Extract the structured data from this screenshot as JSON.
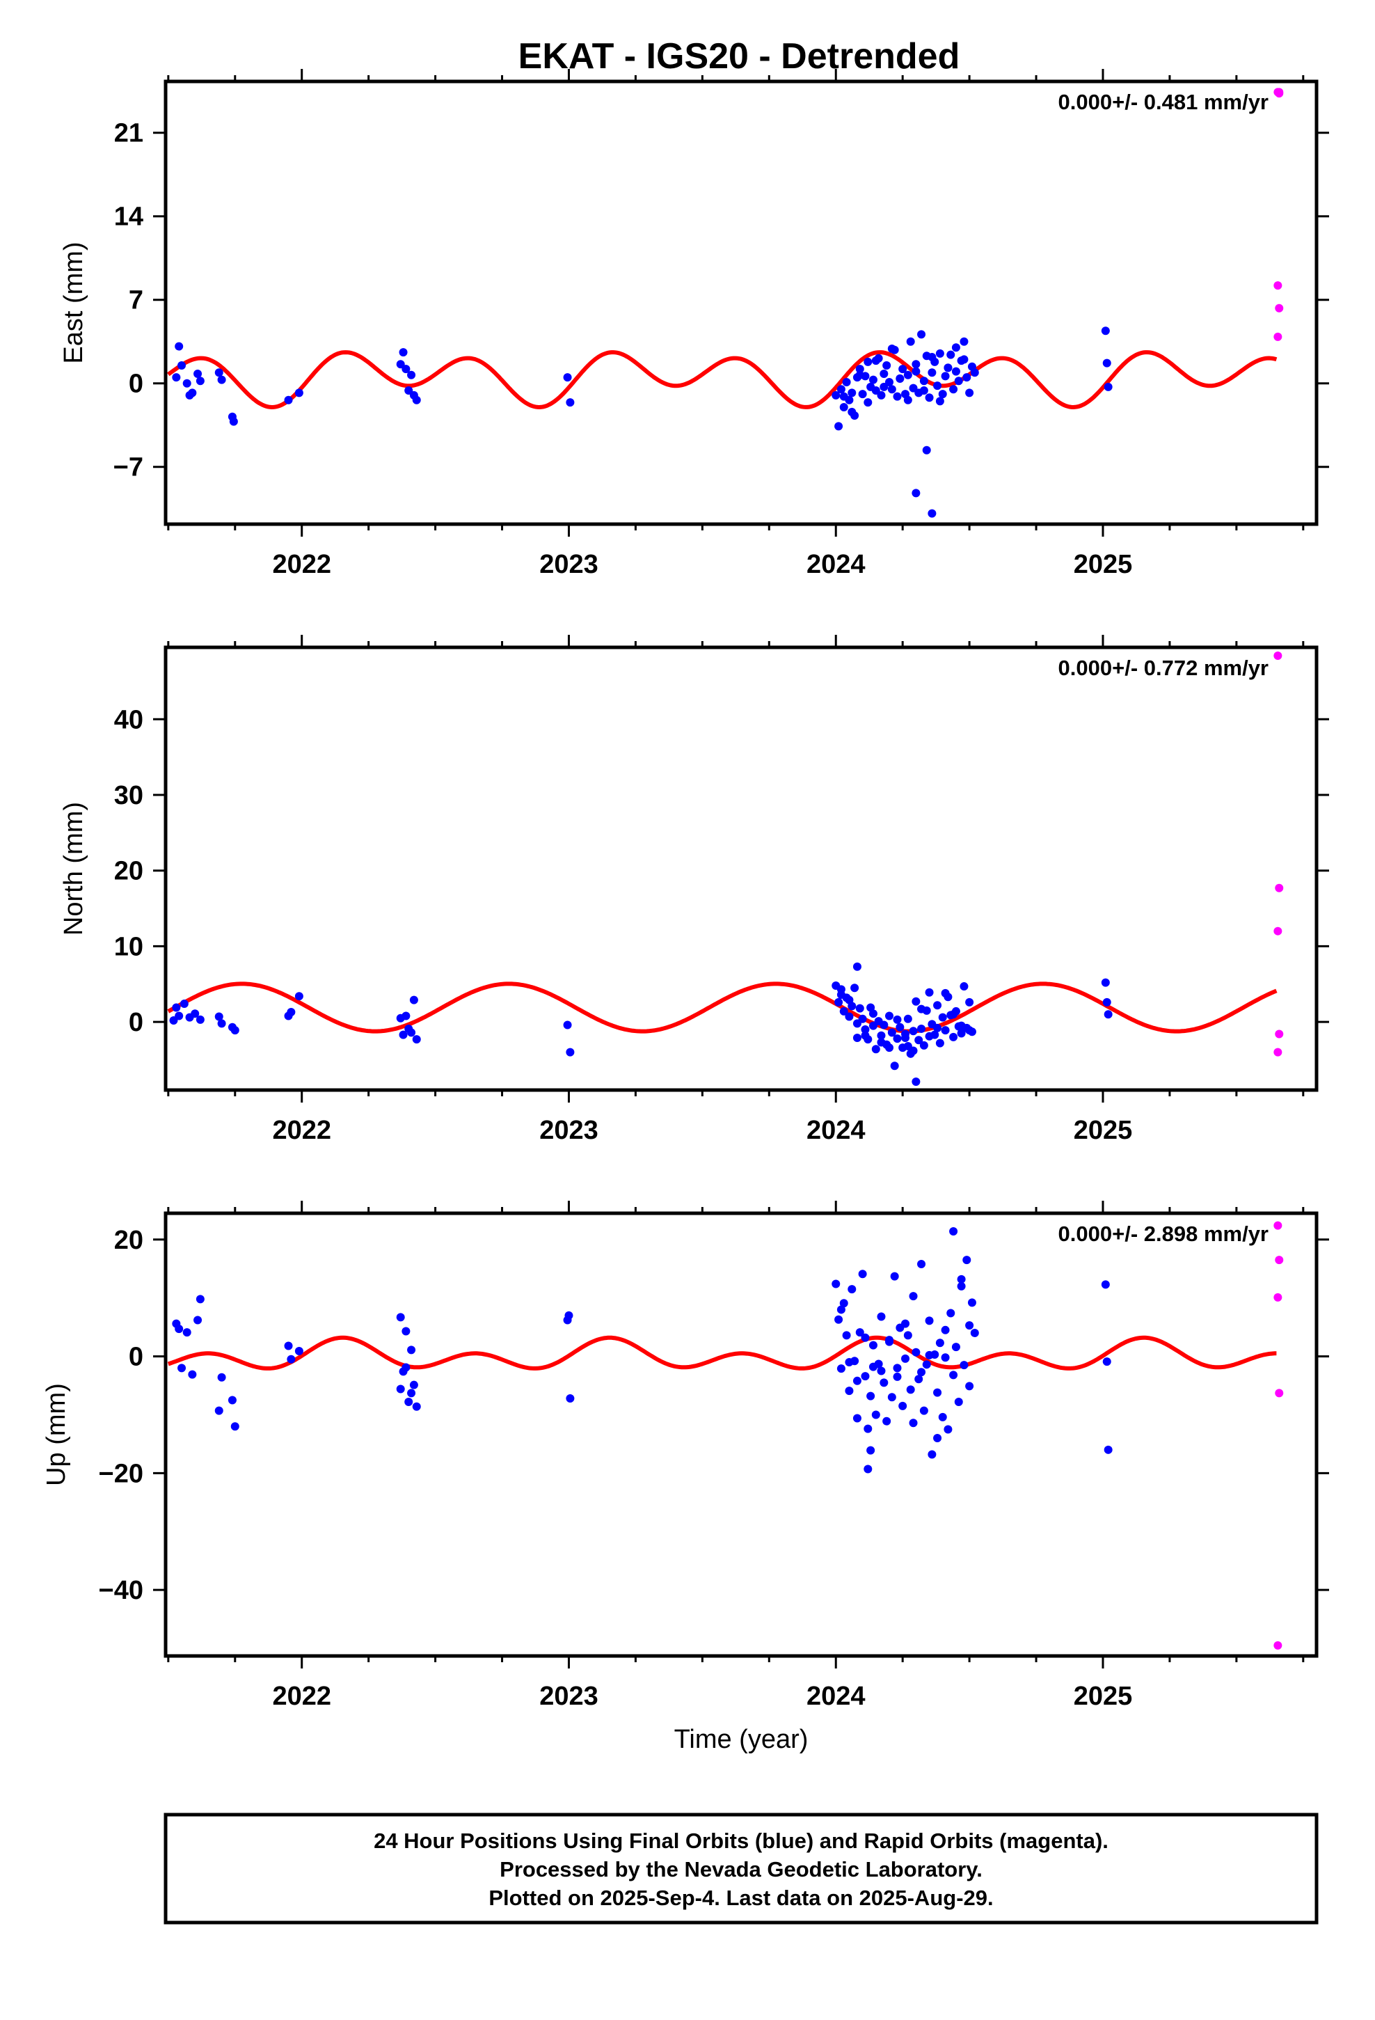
{
  "title": "EKAT - IGS20 - Detrended",
  "colors": {
    "final": "#0000ff",
    "rapid": "#ff00ff",
    "model": "#ff0000",
    "axis": "#000000"
  },
  "chart_data": [
    {
      "type": "scatter",
      "name": "east",
      "ylabel": "East (mm)",
      "xlabel": "",
      "rate_label": "0.000+/- 0.481 mm/yr",
      "xlim": [
        2021.49,
        2025.8
      ],
      "ylim": [
        -11.8,
        25.3
      ],
      "x_ticks": [
        2022,
        2023,
        2024,
        2025
      ],
      "x_tick_labels": [
        "2022",
        "2023",
        "2024",
        "2025"
      ],
      "y_ticks": [
        -7,
        0,
        7,
        14,
        21
      ],
      "y_tick_labels": [
        "−7",
        "0",
        "7",
        "14",
        "21"
      ],
      "model": {
        "offset": 0.6,
        "annual_cos": -0.55,
        "annual_sin": 0.75,
        "semi_cos": -0.4,
        "semi_sin": 1.65
      },
      "final_x": [
        2021.53,
        2021.54,
        2021.55,
        2021.57,
        2021.58,
        2021.59,
        2021.61,
        2021.62,
        2021.69,
        2021.7,
        2021.74,
        2021.745,
        2021.95,
        2021.99,
        2022.37,
        2022.38,
        2022.39,
        2022.4,
        2022.41,
        2022.42,
        2022.43,
        2022.995,
        2023.005,
        2024.0,
        2024.01,
        2024.02,
        2024.03,
        2024.04,
        2024.05,
        2024.06,
        2024.07,
        2024.08,
        2024.09,
        2024.1,
        2024.11,
        2024.12,
        2024.13,
        2024.14,
        2024.15,
        2024.16,
        2024.17,
        2024.18,
        2024.19,
        2024.2,
        2024.21,
        2024.22,
        2024.23,
        2024.24,
        2024.25,
        2024.26,
        2024.27,
        2024.28,
        2024.29,
        2024.3,
        2024.31,
        2024.32,
        2024.33,
        2024.34,
        2024.35,
        2024.36,
        2024.37,
        2024.38,
        2024.39,
        2024.4,
        2024.41,
        2024.42,
        2024.43,
        2024.44,
        2024.45,
        2024.46,
        2024.47,
        2024.48,
        2024.49,
        2024.5,
        2024.51,
        2024.52,
        2024.03,
        2024.06,
        2024.09,
        2024.12,
        2024.15,
        2024.18,
        2024.21,
        2024.24,
        2024.27,
        2024.3,
        2024.33,
        2024.36,
        2024.39,
        2024.42,
        2024.45,
        2024.48,
        2024.3,
        2024.34,
        2024.36,
        2025.01,
        2025.015,
        2025.02
      ],
      "final_y": [
        0.5,
        3.1,
        1.5,
        0.0,
        -1.0,
        -0.8,
        0.8,
        0.2,
        0.9,
        0.3,
        -2.8,
        -3.2,
        -1.4,
        -0.8,
        1.6,
        2.6,
        1.2,
        -0.6,
        0.7,
        -1.0,
        -1.4,
        0.5,
        -1.6,
        -1.0,
        -3.6,
        -0.5,
        -2.0,
        0.1,
        -1.4,
        -0.8,
        -2.7,
        0.5,
        1.2,
        -0.9,
        0.6,
        1.8,
        -0.3,
        0.3,
        -0.6,
        2.1,
        -1.0,
        0.8,
        1.5,
        0.1,
        -0.5,
        2.8,
        -1.1,
        0.4,
        1.2,
        -0.9,
        0.7,
        3.5,
        -0.4,
        1.6,
        -0.8,
        4.1,
        0.2,
        2.3,
        -1.2,
        0.9,
        1.8,
        -0.2,
        2.5,
        -0.9,
        0.6,
        1.3,
        2.4,
        -0.5,
        1.0,
        0.2,
        1.9,
        3.5,
        0.5,
        -0.8,
        1.4,
        0.9,
        -1.1,
        -2.4,
        0.7,
        -1.6,
        1.9,
        -0.3,
        2.9,
        0.4,
        -1.4,
        1.0,
        -0.6,
        2.2,
        -1.5,
        1.3,
        3.0,
        2.0,
        -9.2,
        -5.6,
        -10.9,
        4.4,
        1.7,
        -0.3
      ],
      "rapid_x": [
        2025.655,
        2025.66,
        2025.655,
        2025.66,
        2025.655,
        2025.66
      ],
      "rapid_y": [
        24.4,
        24.3,
        8.2,
        6.3,
        3.9,
        24.4
      ]
    },
    {
      "type": "scatter",
      "name": "north",
      "ylabel": "North (mm)",
      "xlabel": "",
      "rate_label": "0.000+/- 0.772 mm/yr",
      "xlim": [
        2021.49,
        2025.8
      ],
      "ylim": [
        -9.0,
        49.5
      ],
      "x_ticks": [
        2022,
        2023,
        2024,
        2025
      ],
      "x_tick_labels": [
        "2022",
        "2023",
        "2024",
        "2025"
      ],
      "y_ticks": [
        0,
        10,
        20,
        30,
        40
      ],
      "y_tick_labels": [
        "0",
        "10",
        "20",
        "30",
        "40"
      ],
      "model": {
        "offset": 1.9,
        "annual_cos": 0.5,
        "annual_sin": -3.1,
        "semi_cos": 0.0,
        "semi_sin": 0.0
      },
      "final_x": [
        2021.52,
        2021.53,
        2021.54,
        2021.56,
        2021.58,
        2021.6,
        2021.62,
        2021.69,
        2021.7,
        2021.74,
        2021.75,
        2021.95,
        2021.96,
        2021.99,
        2022.37,
        2022.38,
        2022.39,
        2022.4,
        2022.41,
        2022.42,
        2022.43,
        2022.995,
        2023.005,
        2024.0,
        2024.01,
        2024.02,
        2024.03,
        2024.04,
        2024.05,
        2024.06,
        2024.07,
        2024.08,
        2024.09,
        2024.1,
        2024.11,
        2024.12,
        2024.13,
        2024.14,
        2024.15,
        2024.16,
        2024.17,
        2024.18,
        2024.19,
        2024.2,
        2024.21,
        2024.22,
        2024.23,
        2024.24,
        2024.25,
        2024.26,
        2024.27,
        2024.28,
        2024.29,
        2024.3,
        2024.31,
        2024.32,
        2024.33,
        2024.34,
        2024.35,
        2024.36,
        2024.37,
        2024.38,
        2024.39,
        2024.4,
        2024.41,
        2024.42,
        2024.43,
        2024.44,
        2024.45,
        2024.46,
        2024.47,
        2024.48,
        2024.49,
        2024.5,
        2024.51,
        2024.02,
        2024.05,
        2024.08,
        2024.11,
        2024.14,
        2024.17,
        2024.2,
        2024.23,
        2024.26,
        2024.29,
        2024.32,
        2024.35,
        2024.38,
        2024.41,
        2024.44,
        2024.47,
        2024.5,
        2024.08,
        2024.27,
        2024.3,
        2025.01,
        2025.015,
        2025.02
      ],
      "final_y": [
        0.2,
        1.9,
        0.8,
        2.4,
        0.6,
        1.1,
        0.3,
        0.7,
        -0.2,
        -0.7,
        -1.1,
        0.8,
        1.3,
        3.4,
        0.5,
        -1.7,
        0.8,
        -0.9,
        -1.4,
        2.9,
        -2.3,
        -0.4,
        -4.0,
        4.8,
        2.6,
        4.3,
        1.4,
        3.2,
        0.7,
        2.1,
        4.5,
        -2.1,
        1.8,
        0.4,
        -1.0,
        -2.3,
        1.9,
        -0.5,
        -3.6,
        0.1,
        -1.8,
        -0.4,
        -3.0,
        0.8,
        -1.4,
        -5.8,
        -2.2,
        -0.7,
        -3.4,
        -1.6,
        0.4,
        -4.2,
        -1.2,
        2.7,
        -2.4,
        -0.9,
        -3.1,
        1.5,
        3.9,
        -0.3,
        -1.7,
        2.2,
        -2.8,
        0.6,
        -1.1,
        3.3,
        0.9,
        -2.0,
        1.4,
        -0.6,
        -1.5,
        4.7,
        -0.8,
        2.6,
        -1.3,
        3.6,
        2.9,
        -0.2,
        -1.8,
        1.1,
        -2.7,
        -3.4,
        0.3,
        -2.1,
        -3.8,
        1.7,
        -1.9,
        -0.8,
        3.8,
        1.0,
        -0.5,
        -1.1,
        7.3,
        -3.2,
        -7.9,
        5.2,
        2.6,
        1.0
      ],
      "rapid_x": [
        2025.655,
        2025.66,
        2025.655,
        2025.66,
        2025.655
      ],
      "rapid_y": [
        48.4,
        17.7,
        12.0,
        -1.6,
        -4.0
      ]
    },
    {
      "type": "scatter",
      "name": "up",
      "ylabel": "Up (mm)",
      "xlabel": "Time (year)",
      "rate_label": "0.000+/- 2.898 mm/yr",
      "xlim": [
        2021.49,
        2025.8
      ],
      "ylim": [
        -51.3,
        24.5
      ],
      "x_ticks": [
        2022,
        2023,
        2024,
        2025
      ],
      "x_tick_labels": [
        "2022",
        "2023",
        "2024",
        "2025"
      ],
      "y_ticks": [
        -40,
        -20,
        0,
        20
      ],
      "y_tick_labels": [
        "−40",
        "−20",
        "0",
        "20"
      ],
      "model": {
        "offset": 0.0,
        "annual_cos": 0.7,
        "annual_sin": 1.15,
        "semi_cos": -0.6,
        "semi_sin": 1.75
      },
      "final_x": [
        2021.53,
        2021.54,
        2021.55,
        2021.57,
        2021.59,
        2021.61,
        2021.62,
        2021.69,
        2021.7,
        2021.74,
        2021.75,
        2021.95,
        2021.96,
        2021.99,
        2022.37,
        2022.38,
        2022.39,
        2022.4,
        2022.41,
        2022.42,
        2022.43,
        2022.37,
        2022.39,
        2022.41,
        2022.995,
        2023.0,
        2023.005,
        2024.0,
        2024.01,
        2024.02,
        2024.03,
        2024.04,
        2024.05,
        2024.06,
        2024.07,
        2024.08,
        2024.09,
        2024.1,
        2024.11,
        2024.12,
        2024.13,
        2024.14,
        2024.15,
        2024.16,
        2024.17,
        2024.18,
        2024.19,
        2024.2,
        2024.21,
        2024.22,
        2024.23,
        2024.24,
        2024.25,
        2024.26,
        2024.27,
        2024.28,
        2024.29,
        2024.3,
        2024.31,
        2024.32,
        2024.33,
        2024.34,
        2024.35,
        2024.36,
        2024.37,
        2024.38,
        2024.39,
        2024.4,
        2024.41,
        2024.42,
        2024.43,
        2024.44,
        2024.45,
        2024.46,
        2024.47,
        2024.48,
        2024.49,
        2024.5,
        2024.51,
        2024.52,
        2024.02,
        2024.05,
        2024.08,
        2024.11,
        2024.14,
        2024.17,
        2024.2,
        2024.23,
        2024.26,
        2024.29,
        2024.32,
        2024.35,
        2024.38,
        2024.41,
        2024.44,
        2024.47,
        2024.5,
        2024.12,
        2024.13,
        2025.01,
        2025.015,
        2025.02
      ],
      "final_y": [
        5.6,
        4.7,
        -2.0,
        4.1,
        -3.1,
        6.2,
        9.8,
        -9.3,
        -3.6,
        -7.5,
        -12.0,
        1.8,
        -0.5,
        0.9,
        6.7,
        -2.6,
        4.3,
        -7.8,
        1.1,
        -4.9,
        -8.6,
        -5.6,
        -1.9,
        -6.3,
        6.2,
        7.0,
        -7.2,
        12.4,
        6.3,
        -2.1,
        9.1,
        3.6,
        -5.9,
        11.5,
        -0.8,
        -10.6,
        4.1,
        14.1,
        -3.4,
        -12.4,
        -6.8,
        1.9,
        -10.0,
        -1.3,
        6.8,
        -4.5,
        -11.1,
        2.8,
        -7.0,
        13.7,
        -2.0,
        4.9,
        -8.5,
        -0.4,
        3.6,
        -5.7,
        10.3,
        0.7,
        -3.9,
        15.8,
        -9.3,
        -1.4,
        6.1,
        -16.8,
        0.3,
        -6.2,
        2.3,
        -10.4,
        4.5,
        -12.5,
        7.4,
        -3.2,
        1.6,
        -7.8,
        12.0,
        -1.5,
        16.5,
        -5.1,
        9.2,
        4.0,
        8.0,
        -1.0,
        -4.2,
        3.2,
        -1.8,
        -2.5,
        2.5,
        -3.5,
        5.6,
        -11.4,
        -2.7,
        0.2,
        -14.0,
        -0.2,
        21.4,
        13.2,
        5.3,
        -19.3,
        -16.1,
        12.3,
        -0.9,
        -16.0
      ],
      "rapid_x": [
        2025.655,
        2025.66,
        2025.655,
        2025.66,
        2025.655
      ],
      "rapid_y": [
        22.4,
        16.5,
        10.1,
        -6.3,
        -49.5
      ]
    }
  ],
  "footer": {
    "line1": "24 Hour Positions Using Final Orbits (blue) and Rapid Orbits (magenta).",
    "line2": "Processed by the Nevada Geodetic Laboratory.",
    "line3": "Plotted on 2025-Sep-4. Last data on 2025-Aug-29."
  }
}
